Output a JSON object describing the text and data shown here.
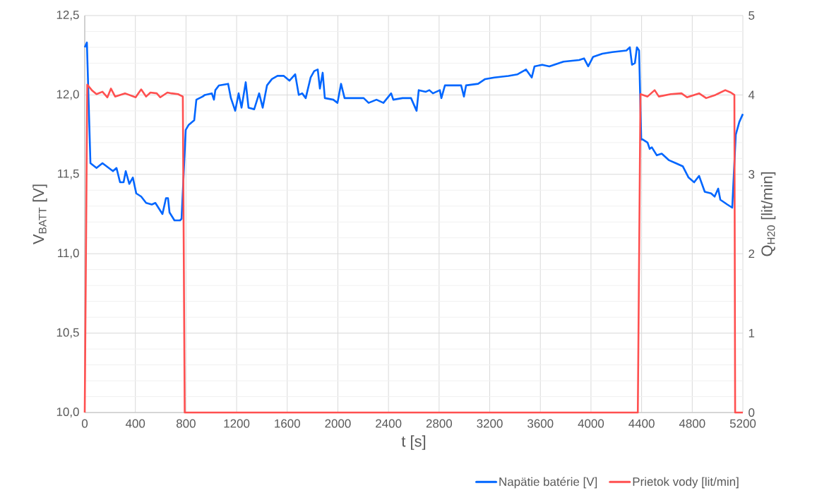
{
  "chart_data": {
    "type": "line",
    "xlabel": "t [s]",
    "ylabel": "V$_{BATT}$ [V]",
    "y2label": "Q$_{H20}$ [lit/min]",
    "xlim": [
      0,
      5200
    ],
    "xticks": [
      0,
      400,
      800,
      1200,
      1600,
      2000,
      2400,
      2800,
      3200,
      3600,
      4000,
      4400,
      4800,
      5200
    ],
    "ylim": [
      10,
      12.5
    ],
    "yticks": [
      {
        "value": 10,
        "label": "10,0"
      },
      {
        "value": 10.5,
        "label": "10,5"
      },
      {
        "value": 11,
        "label": "11,0"
      },
      {
        "value": 11.5,
        "label": "11,5"
      },
      {
        "value": 12,
        "label": "12,0"
      },
      {
        "value": 12.5,
        "label": "12,5"
      }
    ],
    "y2lim": [
      0,
      5
    ],
    "y2ticks": [
      0,
      1,
      2,
      3,
      4,
      5
    ],
    "grid": true,
    "legend": "bottom right",
    "series": [
      {
        "name": "Napätie batérie [V]",
        "color": "#0066ff",
        "x": [
          0,
          17,
          45,
          93,
          140,
          223,
          251,
          279,
          307,
          324,
          352,
          380,
          407,
          446,
          485,
          530,
          558,
          614,
          642,
          658,
          670,
          709,
          753,
          765,
          798,
          820,
          865,
          882,
          932,
          949,
          1004,
          1021,
          1032,
          1060,
          1133,
          1155,
          1189,
          1216,
          1239,
          1272,
          1294,
          1339,
          1378,
          1406,
          1440,
          1479,
          1523,
          1573,
          1618,
          1663,
          1691,
          1718,
          1746,
          1785,
          1813,
          1841,
          1858,
          1880,
          1897,
          1964,
          1997,
          2025,
          2053,
          2120,
          2204,
          2243,
          2305,
          2360,
          2421,
          2438,
          2511,
          2578,
          2622,
          2639,
          2695,
          2723,
          2751,
          2806,
          2818,
          2846,
          2901,
          2974,
          2996,
          3013,
          3108,
          3164,
          3236,
          3348,
          3420,
          3487,
          3532,
          3554,
          3615,
          3671,
          3783,
          3906,
          3945,
          3978,
          4017,
          4090,
          4168,
          4280,
          4307,
          4324,
          4347,
          4363,
          4380,
          4397,
          4408,
          4447,
          4464,
          4481,
          4520,
          4559,
          4614,
          4670,
          4726,
          4771,
          4815,
          4854,
          4899,
          4949,
          4977,
          5005,
          5022,
          5077,
          5116,
          5144,
          5172,
          5200
        ],
        "values": [
          12.3,
          12.33,
          11.57,
          11.54,
          11.57,
          11.52,
          11.54,
          11.45,
          11.45,
          11.52,
          11.44,
          11.48,
          11.38,
          11.36,
          11.32,
          11.31,
          11.32,
          11.25,
          11.35,
          11.35,
          11.26,
          11.21,
          11.21,
          11.22,
          11.78,
          11.81,
          11.84,
          11.97,
          11.99,
          12.0,
          12.01,
          11.97,
          12.03,
          12.06,
          12.07,
          11.98,
          11.9,
          12.01,
          11.92,
          12.08,
          11.92,
          11.91,
          12.01,
          11.92,
          12.06,
          12.1,
          12.12,
          12.12,
          12.09,
          12.13,
          12.0,
          12.01,
          11.98,
          12.11,
          12.15,
          12.16,
          12.04,
          12.14,
          11.98,
          11.97,
          11.95,
          12.07,
          11.98,
          11.98,
          11.98,
          11.95,
          11.97,
          11.95,
          12.01,
          11.97,
          11.98,
          11.98,
          11.9,
          12.03,
          12.02,
          12.03,
          12.01,
          12.03,
          11.98,
          12.06,
          12.06,
          12.06,
          11.99,
          12.06,
          12.07,
          12.1,
          12.11,
          12.12,
          12.13,
          12.16,
          12.11,
          12.18,
          12.19,
          12.18,
          12.21,
          12.22,
          12.23,
          12.18,
          12.24,
          12.26,
          12.27,
          12.28,
          12.3,
          12.19,
          12.2,
          12.3,
          12.28,
          11.72,
          11.72,
          11.7,
          11.66,
          11.67,
          11.62,
          11.63,
          11.59,
          11.57,
          11.55,
          11.48,
          11.45,
          11.49,
          11.39,
          11.38,
          11.36,
          11.41,
          11.34,
          11.31,
          11.29,
          11.75,
          11.83,
          11.88
        ]
      },
      {
        "name": "Prietok vody [lit/min]",
        "color": "#ff5050",
        "axis": "y2",
        "x": [
          0,
          20,
          56,
          93,
          140,
          179,
          207,
          240,
          318,
          402,
          446,
          485,
          519,
          569,
          597,
          653,
          686,
          737,
          775,
          790,
          4370,
          4391,
          4447,
          4503,
          4536,
          4631,
          4715,
          4759,
          4854,
          4910,
          4983,
          5061,
          5105,
          5133,
          5139,
          5200
        ],
        "values": [
          0,
          4.13,
          4.06,
          4.01,
          4.04,
          3.97,
          4.08,
          3.98,
          4.02,
          3.97,
          4.07,
          3.98,
          4.03,
          4.02,
          3.97,
          4.03,
          4.02,
          4.01,
          3.98,
          0,
          0,
          4.01,
          3.98,
          4.06,
          3.98,
          4.01,
          4.02,
          3.97,
          4.02,
          3.96,
          4.0,
          4.06,
          4.03,
          4.0,
          0,
          0
        ]
      }
    ]
  }
}
